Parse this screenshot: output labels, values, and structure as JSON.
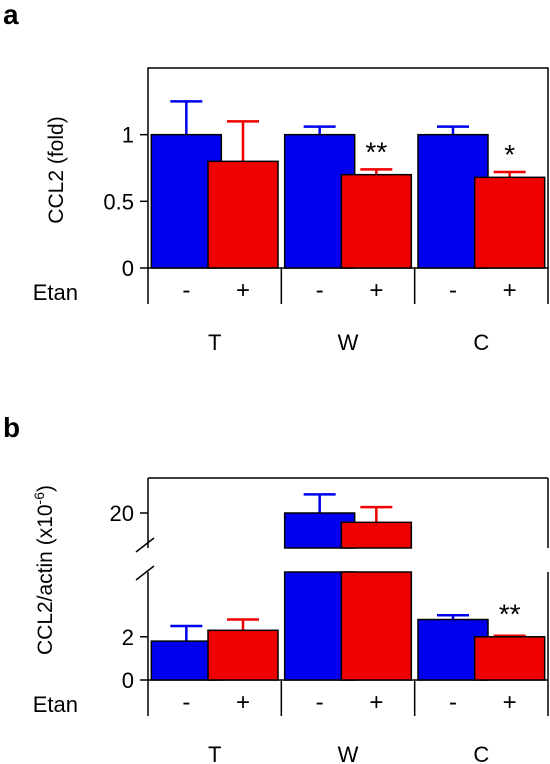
{
  "chart_data": [
    {
      "type": "bar",
      "panel": "a",
      "ylabel": "CCL2 (fold)",
      "ylim": [
        0,
        1.5
      ],
      "yticks": [
        "0",
        "0.5",
        "1"
      ],
      "row_label": "Etan",
      "groups": [
        "T",
        "W",
        "C"
      ],
      "treatments": [
        "-",
        "+"
      ],
      "colors": {
        "minus": "#0000ee",
        "plus": "#ee0000"
      },
      "series": [
        {
          "values": [
            1.0,
            1.0,
            1.0
          ],
          "errors": [
            0.25,
            0.06,
            0.06
          ],
          "color": "#0000ee"
        },
        {
          "values": [
            0.8,
            0.7,
            0.68
          ],
          "errors": [
            0.3,
            0.04,
            0.04
          ],
          "color": "#ee0000"
        }
      ],
      "significance": [
        {
          "group": 1,
          "series": 1,
          "label": "**"
        },
        {
          "group": 2,
          "series": 1,
          "label": "*"
        }
      ]
    },
    {
      "type": "bar",
      "panel": "b",
      "ylabel": "CCL2/actin (x10",
      "ylabel_sup": "-6",
      "ylabel_close": ")",
      "axis_break": true,
      "lower_range": [
        0,
        5
      ],
      "upper_range": [
        17,
        23
      ],
      "yticks": [
        "0",
        "2",
        "20"
      ],
      "row_label": "Etan",
      "groups": [
        "T",
        "W",
        "C"
      ],
      "treatments": [
        "-",
        "+"
      ],
      "colors": {
        "minus": "#0000ee",
        "plus": "#ee0000"
      },
      "series": [
        {
          "values": [
            1.8,
            20.0,
            2.8
          ],
          "errors": [
            0.7,
            1.6,
            0.2
          ],
          "color": "#0000ee"
        },
        {
          "values": [
            2.3,
            19.2,
            2.0
          ],
          "errors": [
            0.5,
            1.3,
            0.05
          ],
          "color": "#ee0000"
        }
      ],
      "significance": [
        {
          "group": 2,
          "series": 1,
          "label": "**"
        }
      ]
    }
  ]
}
